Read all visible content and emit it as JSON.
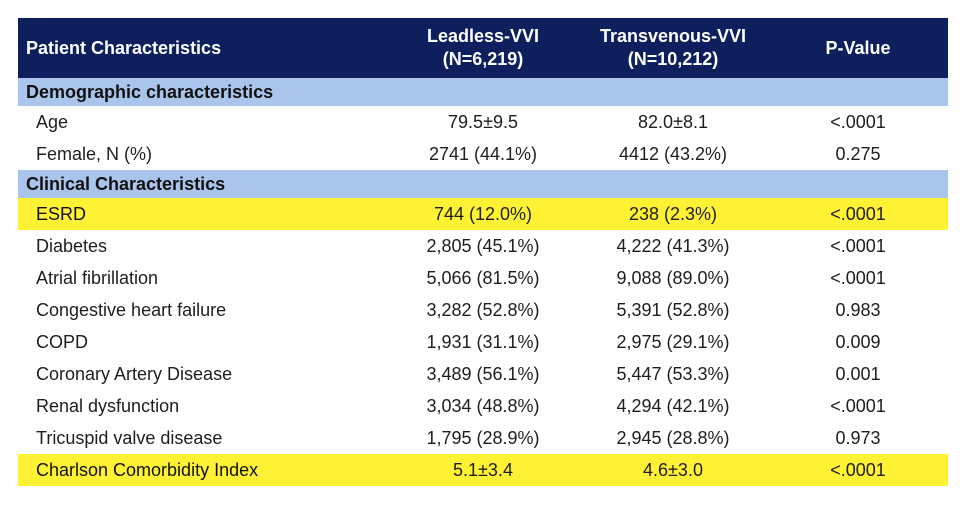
{
  "header": {
    "col0": "Patient Characteristics",
    "col1_line1": "Leadless-VVI",
    "col1_line2": "(N=6,219)",
    "col2_line1": "Transvenous-VVI",
    "col2_line2": "(N=10,212)",
    "col3": "P-Value"
  },
  "sections": {
    "demographic": "Demographic characteristics",
    "clinical": "Clinical Characteristics"
  },
  "demographic_rows": [
    {
      "label": "Age",
      "leadless": "79.5±9.5",
      "transvenous": "82.0±8.1",
      "p": "<.0001"
    },
    {
      "label": "Female, N (%)",
      "leadless": "2741 (44.1%)",
      "transvenous": "4412 (43.2%)",
      "p": "0.275"
    }
  ],
  "clinical_rows": [
    {
      "label": "ESRD",
      "leadless": "744 (12.0%)",
      "transvenous": "238 (2.3%)",
      "p": "<.0001",
      "highlight": true
    },
    {
      "label": "Diabetes",
      "leadless": "2,805 (45.1%)",
      "transvenous": "4,222 (41.3%)",
      "p": "<.0001"
    },
    {
      "label": "Atrial fibrillation",
      "leadless": "5,066 (81.5%)",
      "transvenous": "9,088 (89.0%)",
      "p": "<.0001"
    },
    {
      "label": "Congestive heart failure",
      "leadless": "3,282 (52.8%)",
      "transvenous": "5,391 (52.8%)",
      "p": "0.983"
    },
    {
      "label": "COPD",
      "leadless": "1,931 (31.1%)",
      "transvenous": "2,975 (29.1%)",
      "p": "0.009"
    },
    {
      "label": "Coronary Artery Disease",
      "leadless": "3,489 (56.1%)",
      "transvenous": "5,447 (53.3%)",
      "p": "0.001"
    },
    {
      "label": "Renal dysfunction",
      "leadless": "3,034 (48.8%)",
      "transvenous": "4,294 (42.1%)",
      "p": "<.0001"
    },
    {
      "label": "Tricuspid valve disease",
      "leadless": "1,795 (28.9%)",
      "transvenous": "2,945 (28.8%)",
      "p": "0.973"
    },
    {
      "label": "Charlson Comorbidity Index",
      "leadless": "5.1±3.4",
      "transvenous": "4.6±3.0",
      "p": "<.0001",
      "highlight": true
    }
  ],
  "colors": {
    "header_bg": "#0d1f5c",
    "section_bg": "#a9c5eb",
    "highlight_bg": "#fff235"
  }
}
